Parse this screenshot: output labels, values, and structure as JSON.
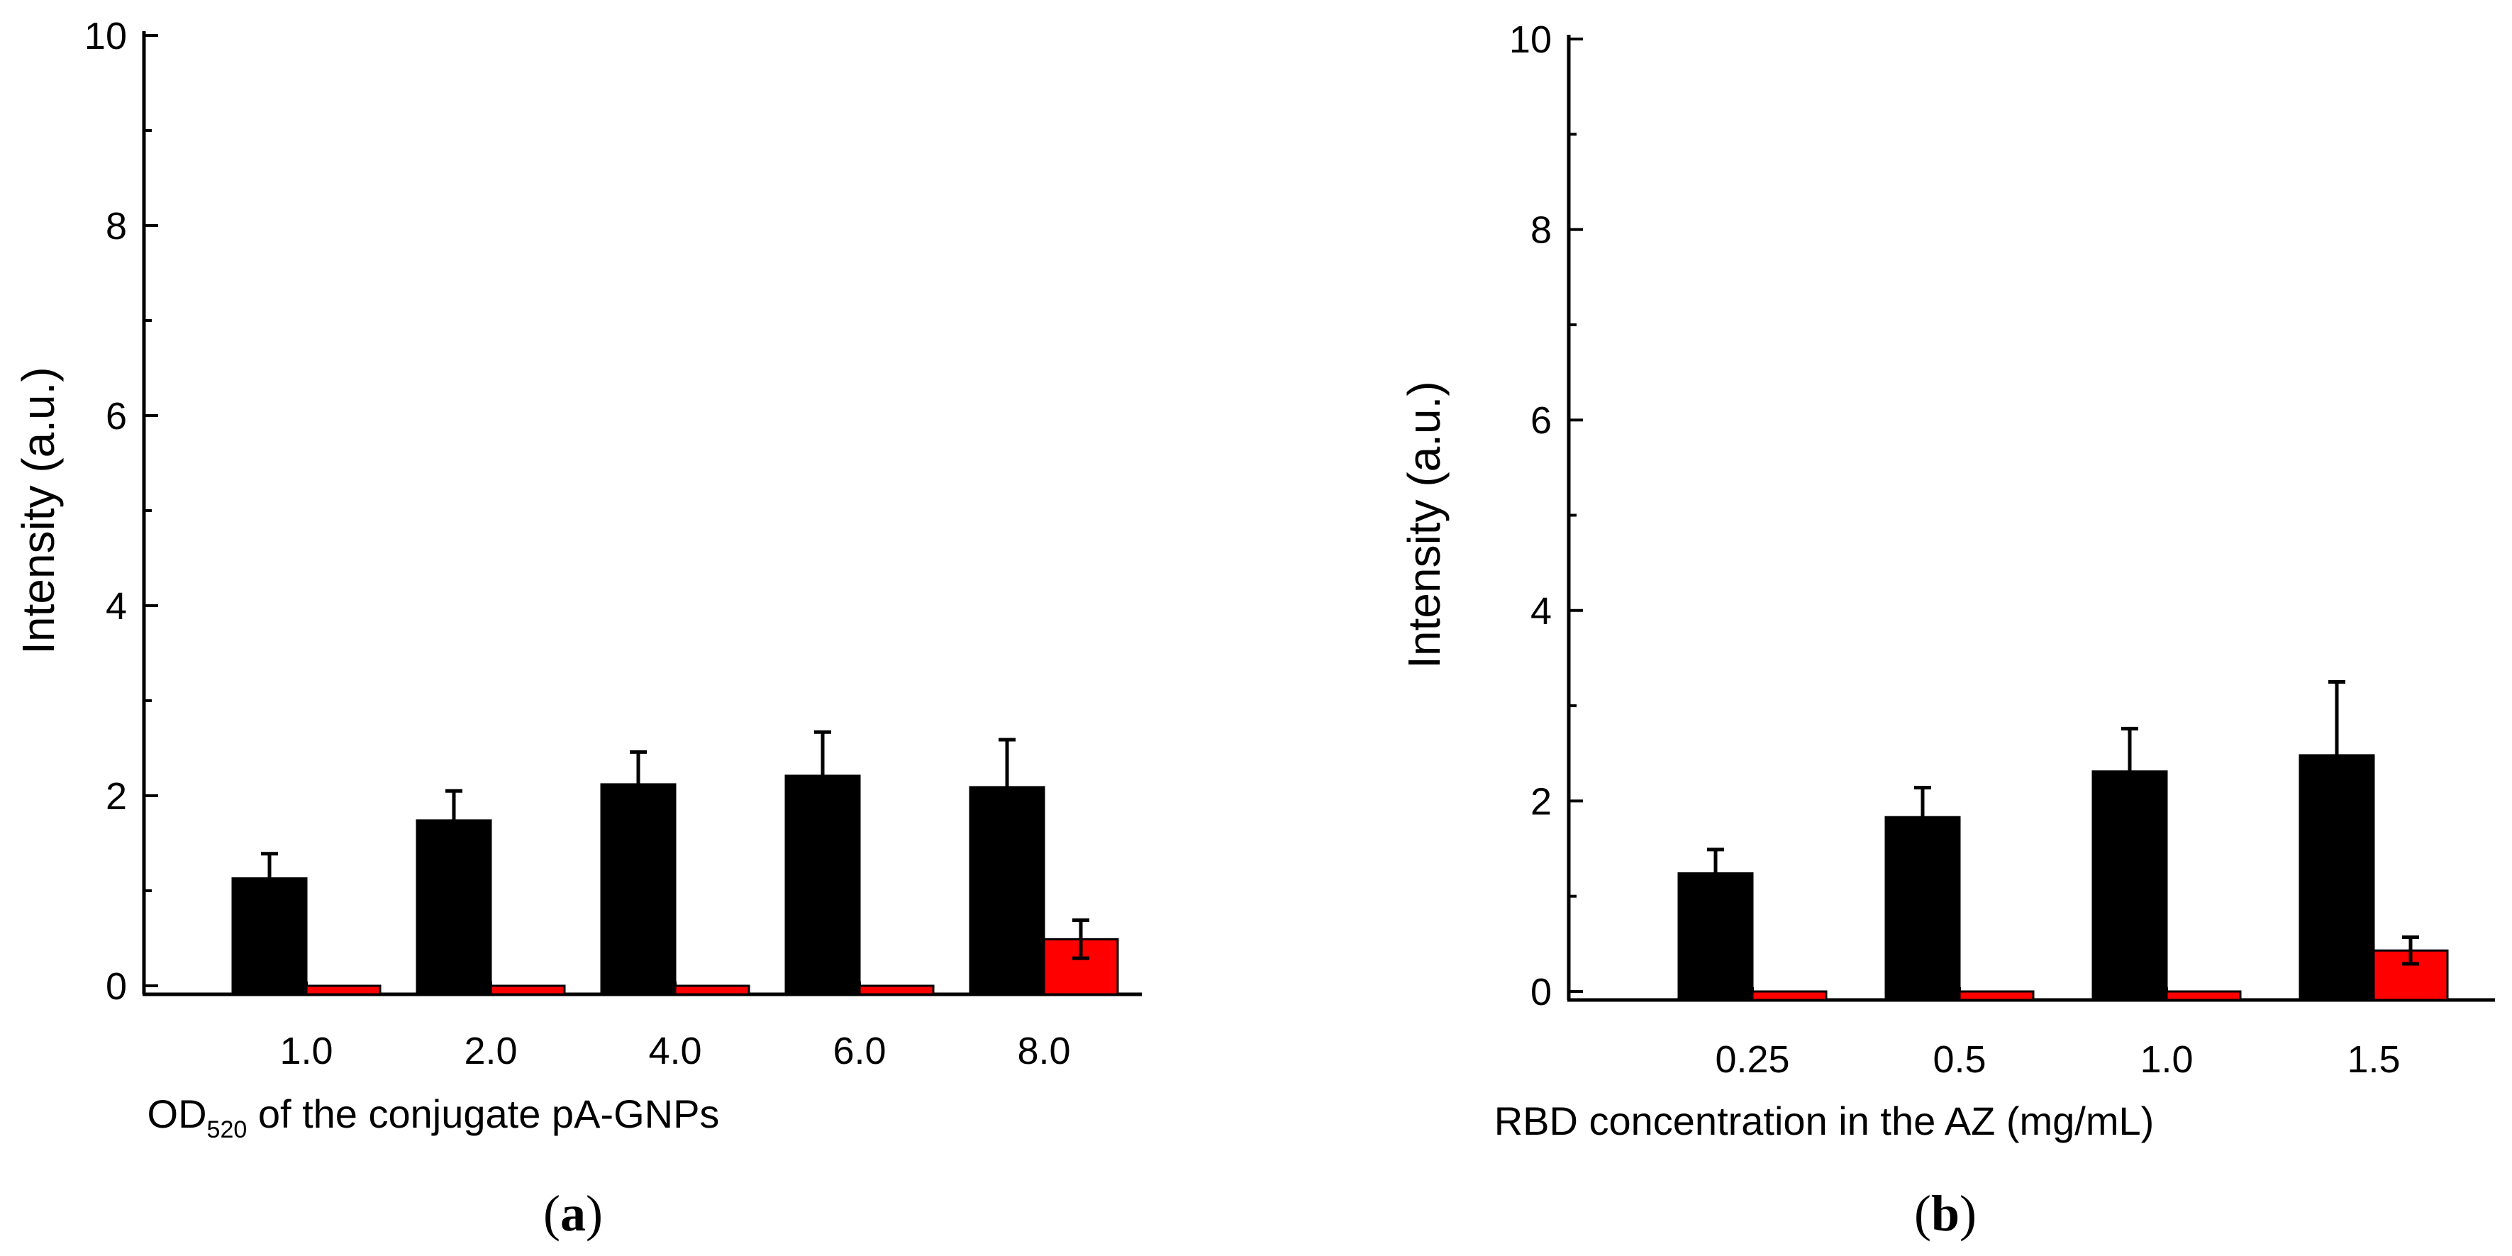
{
  "chart_data": [
    {
      "type": "bar",
      "panel_label": "a",
      "xlabel_main": "OD",
      "xlabel_subscript": "520",
      "xlabel_rest": " of the conjugate pA-GNPs",
      "ylabel": "Intensity (a.u.)",
      "ylim": [
        0,
        10
      ],
      "yticks": [
        "0",
        "2",
        "4",
        "6",
        "8",
        "10"
      ],
      "categories": [
        "1.0",
        "2.0",
        "4.0",
        "6.0",
        "8.0"
      ],
      "series": [
        {
          "name": "black",
          "color": "#000000",
          "values": [
            1.13,
            1.74,
            2.12,
            2.21,
            2.09
          ],
          "errors": [
            0.26,
            0.31,
            0.34,
            0.46,
            0.5
          ]
        },
        {
          "name": "red",
          "color": "#ff0000",
          "values": [
            0.0,
            0.0,
            0.0,
            0.0,
            0.49
          ],
          "errors": [
            0,
            0,
            0,
            0,
            0.2
          ]
        }
      ]
    },
    {
      "type": "bar",
      "panel_label": "b",
      "xlabel_main": "RBD concentration in the AZ (mg/mL)",
      "xlabel_subscript": "",
      "xlabel_rest": "",
      "ylabel": "Intensity (a.u.)",
      "ylim": [
        0,
        10
      ],
      "yticks": [
        "0",
        "2",
        "4",
        "6",
        "8",
        "10"
      ],
      "categories": [
        "0.25",
        "0.5",
        "1.0",
        "1.5"
      ],
      "series": [
        {
          "name": "black",
          "color": "#000000",
          "values": [
            1.24,
            1.83,
            2.31,
            2.48
          ],
          "errors": [
            0.25,
            0.31,
            0.45,
            0.77
          ]
        },
        {
          "name": "red",
          "color": "#ff0000",
          "values": [
            0.0,
            0.0,
            0.0,
            0.43
          ],
          "errors": [
            0,
            0,
            0,
            0.14
          ]
        }
      ]
    }
  ]
}
